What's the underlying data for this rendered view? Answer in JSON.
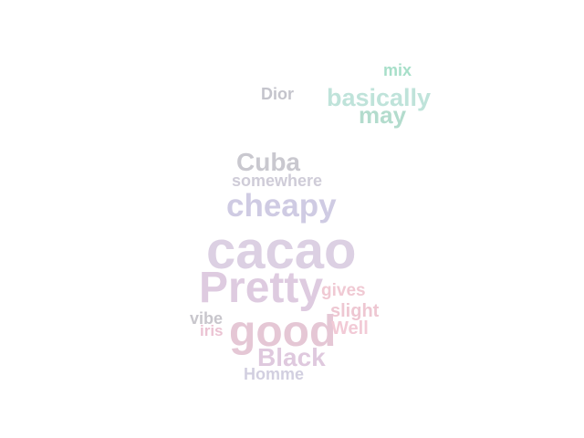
{
  "word_cloud": {
    "words": [
      {
        "text": "mix",
        "color": "#a7dfc9"
      },
      {
        "text": "Dior",
        "color": "#c4c4cc"
      },
      {
        "text": "basically",
        "color": "#bfe3da"
      },
      {
        "text": "may",
        "color": "#b3dccd"
      },
      {
        "text": "Cuba",
        "color": "#c9c8cf"
      },
      {
        "text": "somewhere",
        "color": "#cfccd8"
      },
      {
        "text": "cheapy",
        "color": "#cfcbe3"
      },
      {
        "text": "cacao",
        "color": "#dcd0e3"
      },
      {
        "text": "Pretty",
        "color": "#decbe0"
      },
      {
        "text": "gives",
        "color": "#f0c9d3"
      },
      {
        "text": "vibe",
        "color": "#c8c6cc"
      },
      {
        "text": "slight",
        "color": "#eec7d2"
      },
      {
        "text": "iris",
        "color": "#ebc3d3"
      },
      {
        "text": "good",
        "color": "#e5c7d5"
      },
      {
        "text": "Well",
        "color": "#f2cad6"
      },
      {
        "text": "Black",
        "color": "#dfc9de"
      },
      {
        "text": "Homme",
        "color": "#d2cfe0"
      }
    ]
  }
}
